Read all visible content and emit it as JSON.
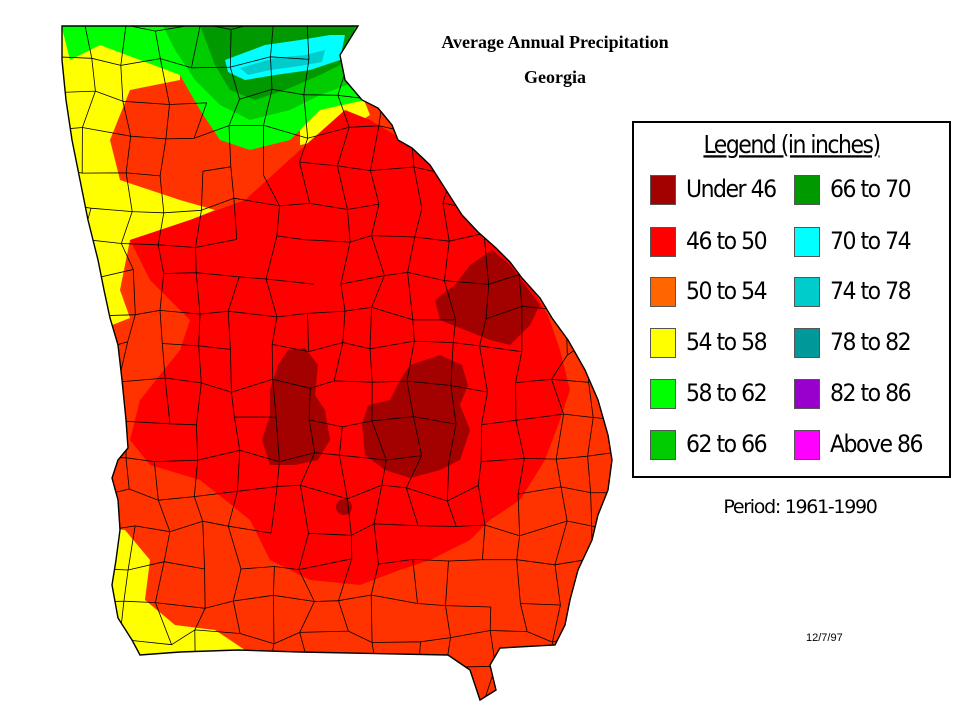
{
  "title_line1": "Average Annual Precipitation",
  "title_line2": "Georgia",
  "legend": {
    "title": "Legend (in inches)",
    "items": [
      {
        "label": "Under 46",
        "color": "#a30000"
      },
      {
        "label": "46 to 50",
        "color": "#ff0000"
      },
      {
        "label": "50 to 54",
        "color": "#ff6600"
      },
      {
        "label": "54 to 58",
        "color": "#ffff00"
      },
      {
        "label": "58 to 62",
        "color": "#00ff00"
      },
      {
        "label": "62 to 66",
        "color": "#00cc00"
      },
      {
        "label": "66 to 70",
        "color": "#009900"
      },
      {
        "label": "70 to 74",
        "color": "#00ffff"
      },
      {
        "label": "74 to 78",
        "color": "#00cccc"
      },
      {
        "label": "78 to 82",
        "color": "#009999"
      },
      {
        "label": "82 to 86",
        "color": "#9900cc"
      },
      {
        "label": "Above 86",
        "color": "#ff00ff"
      }
    ]
  },
  "period": "Period: 1961-1990",
  "date": "12/7/97"
}
